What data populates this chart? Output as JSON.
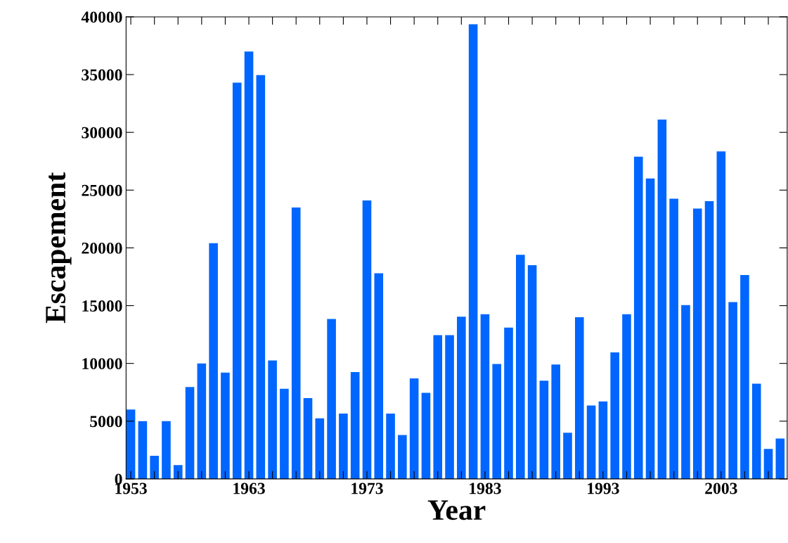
{
  "chart_data": {
    "type": "bar",
    "xlabel": "Year",
    "ylabel": "Escapement",
    "x": [
      1953,
      1954,
      1955,
      1956,
      1957,
      1958,
      1959,
      1960,
      1961,
      1962,
      1963,
      1964,
      1965,
      1966,
      1967,
      1968,
      1969,
      1970,
      1971,
      1972,
      1973,
      1974,
      1975,
      1976,
      1977,
      1978,
      1979,
      1980,
      1981,
      1982,
      1983,
      1984,
      1985,
      1986,
      1987,
      1988,
      1989,
      1990,
      1991,
      1992,
      1993,
      1994,
      1995,
      1996,
      1997,
      1998,
      1999,
      2000,
      2001,
      2002,
      2003,
      2004,
      2005,
      2006,
      2007,
      2008
    ],
    "values": [
      6000,
      5000,
      2000,
      5000,
      1200,
      7950,
      10000,
      20400,
      9200,
      34300,
      37000,
      34950,
      10250,
      7800,
      23500,
      7000,
      5250,
      13850,
      5650,
      9250,
      24100,
      17800,
      5650,
      3800,
      8700,
      7450,
      12450,
      12450,
      14050,
      39350,
      14250,
      9950,
      13100,
      19400,
      18500,
      8500,
      9900,
      4000,
      14000,
      6350,
      6700,
      10950,
      14250,
      27900,
      26000,
      31100,
      24250,
      15050,
      23400,
      24050,
      28350,
      15300,
      17650,
      8250,
      2600,
      3500
    ],
    "color": "#0066ff",
    "xlim": [
      1952.6,
      2008.6
    ],
    "xticks": [
      1953,
      {
        "value": 1955,
        "label": null
      },
      {
        "value": 1957,
        "label": null
      },
      {
        "value": 1959,
        "label": null
      },
      {
        "value": 1961,
        "label": null
      },
      1963,
      {
        "value": 1965,
        "label": null
      },
      {
        "value": 1967,
        "label": null
      },
      {
        "value": 1969,
        "label": null
      },
      {
        "value": 1971,
        "label": null
      },
      1973,
      {
        "value": 1975,
        "label": null
      },
      {
        "value": 1977,
        "label": null
      },
      {
        "value": 1979,
        "label": null
      },
      {
        "value": 1981,
        "label": null
      },
      1983,
      {
        "value": 1985,
        "label": null
      },
      {
        "value": 1987,
        "label": null
      },
      {
        "value": 1989,
        "label": null
      },
      {
        "value": 1991,
        "label": null
      },
      1993,
      {
        "value": 1995,
        "label": null
      },
      {
        "value": 1997,
        "label": null
      },
      {
        "value": 1999,
        "label": null
      },
      {
        "value": 2001,
        "label": null
      },
      2003,
      {
        "value": 2005,
        "label": null
      },
      {
        "value": 2007,
        "label": null
      }
    ],
    "ylim": [
      0,
      40000
    ],
    "yticks": [
      0,
      5000,
      10000,
      15000,
      20000,
      25000,
      30000,
      35000,
      40000
    ],
    "grid": false
  }
}
